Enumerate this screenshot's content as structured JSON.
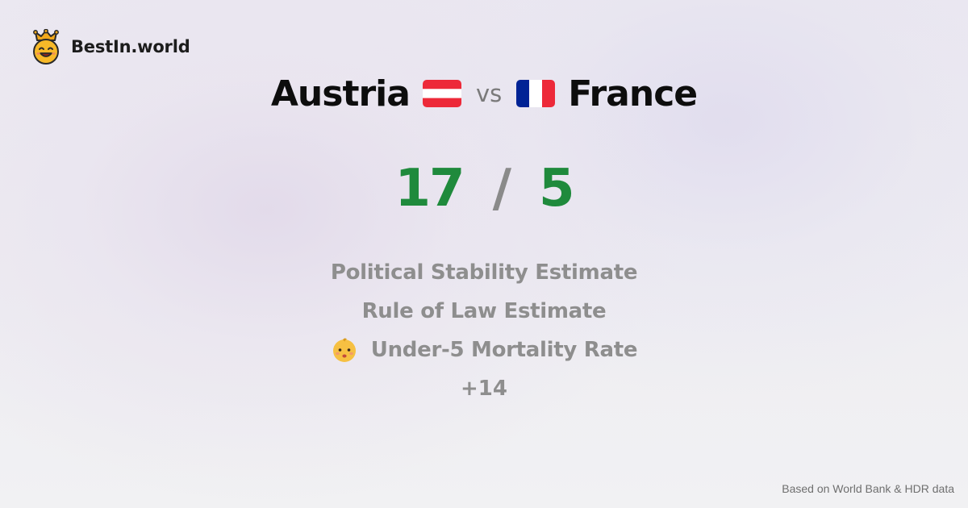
{
  "brand": {
    "name": "BestIn.world",
    "logo_icon": "crowned-smiley-icon"
  },
  "comparison": {
    "country_a": {
      "name": "Austria",
      "flag_icon": "austria-flag-icon",
      "flag_colors": [
        "#ed2939",
        "#ffffff",
        "#ed2939"
      ]
    },
    "vs_label": "vs",
    "country_b": {
      "name": "France",
      "flag_icon": "france-flag-icon",
      "flag_colors": [
        "#002395",
        "#ffffff",
        "#ed2939"
      ]
    }
  },
  "score": {
    "a": "17",
    "separator": "/",
    "b": "5",
    "color": "#1f8a3c"
  },
  "metrics": [
    {
      "label": "Political Stability Estimate",
      "icon": ""
    },
    {
      "label": "Rule of Law Estimate",
      "icon": ""
    },
    {
      "label": "Under-5 Mortality Rate",
      "icon": "baby-face-icon"
    }
  ],
  "more_label": "+14",
  "footer": {
    "source": "Based on World Bank & HDR data"
  }
}
